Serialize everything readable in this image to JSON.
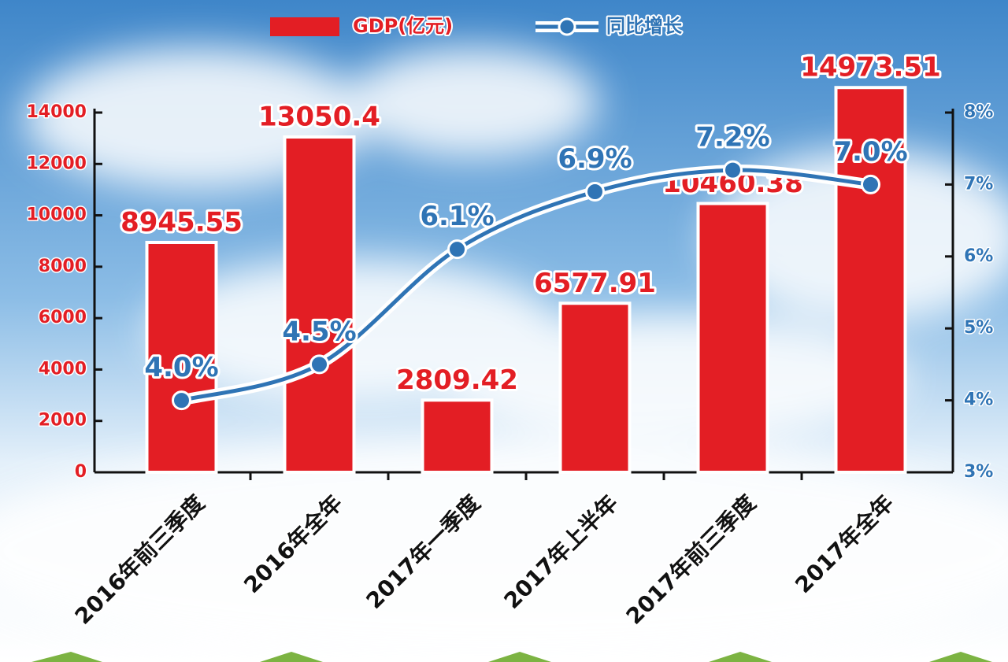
{
  "chart_data": {
    "type": "combo",
    "categories": [
      "2016年前三季度",
      "2016年全年",
      "2017年一季度",
      "2017年上半年",
      "2017年前三季度",
      "2017年全年"
    ],
    "series": [
      {
        "name": "GDP(亿元)",
        "type": "bar",
        "color": "#e31e24",
        "values": [
          8945.55,
          13050.4,
          2809.42,
          6577.91,
          10460.38,
          14973.51
        ]
      },
      {
        "name": "同比增长",
        "type": "line",
        "axis": "y2",
        "color": "#2f74b5",
        "values": [
          4.0,
          4.5,
          6.1,
          6.9,
          7.2,
          7.0
        ],
        "value_labels": [
          "4.0%",
          "4.5%",
          "6.1%",
          "6.9%",
          "7.2%",
          "7.0%"
        ]
      }
    ],
    "ylim": [
      0,
      14000
    ],
    "yticks": [
      0,
      2000,
      4000,
      6000,
      8000,
      10000,
      12000,
      14000
    ],
    "y2lim": [
      3,
      8
    ],
    "y2ticks": [
      {
        "value": 3,
        "label": "3%"
      },
      {
        "value": 4,
        "label": "4%"
      },
      {
        "value": 5,
        "label": "5%"
      },
      {
        "value": 6,
        "label": "6%"
      },
      {
        "value": 7,
        "label": "7%"
      },
      {
        "value": 8,
        "label": "8%"
      }
    ]
  }
}
